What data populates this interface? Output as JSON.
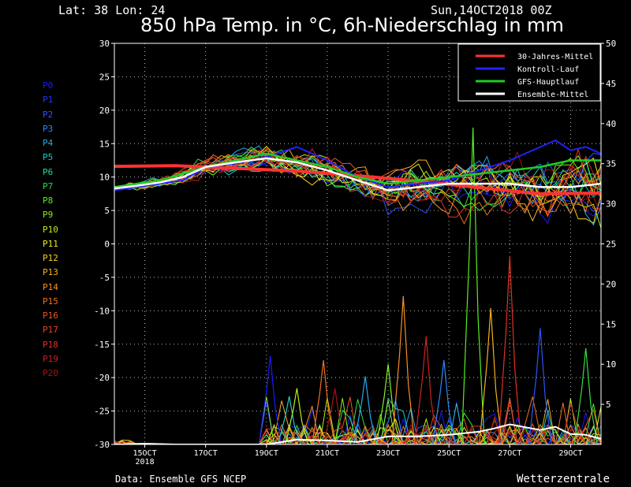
{
  "header": {
    "latlon": "Lat: 38 Lon: 24",
    "date": "Sun,14OCT2018 00Z",
    "title": "850 hPa Temp. in °C, 6h-Niederschlag in mm"
  },
  "members": [
    {
      "label": "P0",
      "color": "#1a1aff"
    },
    {
      "label": "P1",
      "color": "#2233ff"
    },
    {
      "label": "P2",
      "color": "#2a55ff"
    },
    {
      "label": "P3",
      "color": "#2a88ff"
    },
    {
      "label": "P4",
      "color": "#22aaee"
    },
    {
      "label": "P5",
      "color": "#1ec8c8"
    },
    {
      "label": "P6",
      "color": "#22dd88"
    },
    {
      "label": "P7",
      "color": "#33dd44"
    },
    {
      "label": "P8",
      "color": "#55ee22"
    },
    {
      "label": "P9",
      "color": "#88ee22"
    },
    {
      "label": "P10",
      "color": "#bbee11"
    },
    {
      "label": "P11",
      "color": "#eeee22"
    },
    {
      "label": "P12",
      "color": "#f5d020"
    },
    {
      "label": "P13",
      "color": "#f5b020"
    },
    {
      "label": "P14",
      "color": "#f59020"
    },
    {
      "label": "P15",
      "color": "#f07020"
    },
    {
      "label": "P16",
      "color": "#ee5522"
    },
    {
      "label": "P17",
      "color": "#e84422"
    },
    {
      "label": "P18",
      "color": "#dd3322"
    },
    {
      "label": "P19",
      "color": "#cc2222"
    },
    {
      "label": "P20",
      "color": "#aa1111"
    }
  ],
  "credits": {
    "left": "Data: Ensemble GFS NCEP",
    "right": "Wetterzentrale"
  },
  "chart_data": {
    "type": "line",
    "title": "850 hPa Temp. in °C, 6h-Niederschlag in mm",
    "x_ticks": [
      "15OCT",
      "17OCT",
      "19OCT",
      "21OCT",
      "23OCT",
      "25OCT",
      "27OCT",
      "29OCT"
    ],
    "x_tick_hours": [
      24,
      72,
      120,
      168,
      216,
      264,
      312,
      360
    ],
    "x_year_label": "2018",
    "x_range_hours": [
      0,
      384
    ],
    "y_left": {
      "label": "°C",
      "range": [
        -30,
        30
      ],
      "ticks": [
        30,
        25,
        20,
        15,
        10,
        5,
        0,
        -5,
        -10,
        -15,
        -20,
        -25,
        -30
      ]
    },
    "y_right": {
      "label": "mm",
      "range": [
        0,
        50
      ],
      "ticks": [
        50,
        45,
        40,
        35,
        30,
        25,
        20,
        15,
        10,
        5
      ]
    },
    "grid": true,
    "legend": {
      "placement": "top-right",
      "entries": [
        {
          "label": "30-Jahres-Mittel",
          "color": "#ff3333"
        },
        {
          "label": "Kontroll-Lauf",
          "color": "#2222ff"
        },
        {
          "label": "GFS-Hauptlauf",
          "color": "#22cc22"
        },
        {
          "label": "Ensemble-Mittel",
          "color": "#ffffff"
        }
      ]
    },
    "series": [
      {
        "name": "30-Jahres-Mittel",
        "color": "#ff3333",
        "axis": "temp",
        "width": 4,
        "x": [
          0,
          48,
          96,
          144,
          192,
          240,
          288,
          336,
          384
        ],
        "y": [
          11.6,
          11.7,
          11.3,
          10.9,
          10.2,
          9.4,
          8.4,
          7.5,
          7.6
        ]
      },
      {
        "name": "Kontroll-Lauf",
        "color": "#2222ff",
        "axis": "temp",
        "width": 2,
        "x": [
          0,
          18,
          36,
          54,
          72,
          96,
          120,
          144,
          156,
          168,
          192,
          216,
          240,
          264,
          288,
          312,
          336,
          348,
          360,
          372,
          384
        ],
        "y": [
          8,
          8.5,
          9,
          9.5,
          11.5,
          12,
          13,
          14.5,
          13.5,
          12.5,
          10,
          8.5,
          9,
          9.5,
          11,
          12.5,
          14.5,
          15.5,
          14,
          14.5,
          13.5
        ]
      },
      {
        "name": "GFS-Hauptlauf",
        "color": "#22cc22",
        "axis": "temp",
        "width": 2.5,
        "x": [
          0,
          18,
          36,
          54,
          72,
          96,
          120,
          144,
          168,
          192,
          216,
          240,
          264,
          288,
          312,
          336,
          360,
          384
        ],
        "y": [
          8.5,
          9,
          9.5,
          10.5,
          11.5,
          12.5,
          13.5,
          12.5,
          11.5,
          10,
          9,
          9.5,
          10,
          10.5,
          11,
          11.5,
          12.5,
          12.5
        ]
      },
      {
        "name": "Ensemble-Mittel",
        "color": "#ffffff",
        "axis": "temp",
        "width": 2.5,
        "x": [
          0,
          18,
          36,
          54,
          72,
          96,
          120,
          144,
          168,
          192,
          216,
          240,
          264,
          288,
          312,
          336,
          360,
          384
        ],
        "y": [
          8.3,
          8.7,
          9.2,
          10,
          11.5,
          12.2,
          12.8,
          12.2,
          11,
          9.5,
          8,
          8.5,
          9,
          9,
          9,
          8.5,
          8.5,
          9
        ]
      },
      {
        "name": "Ensemble-Mittel Niederschlag",
        "color": "#ffffff",
        "axis": "precip",
        "width": 2,
        "x": [
          0,
          24,
          48,
          72,
          96,
          120,
          144,
          168,
          192,
          216,
          240,
          264,
          288,
          300,
          312,
          336,
          348,
          360,
          372,
          384
        ],
        "y": [
          0,
          0.1,
          0,
          0,
          0,
          0,
          0.6,
          0.5,
          0.3,
          1,
          1,
          1.2,
          1.6,
          2,
          2.5,
          1.8,
          2.2,
          1.3,
          1.2,
          0.7
        ]
      }
    ],
    "member_precip_peaks": [
      {
        "x": 123,
        "y": 11
      },
      {
        "x": 138,
        "y": 6
      },
      {
        "x": 144,
        "y": 7
      },
      {
        "x": 165,
        "y": 10.5
      },
      {
        "x": 174,
        "y": 7
      },
      {
        "x": 198,
        "y": 8.5
      },
      {
        "x": 216,
        "y": 10
      },
      {
        "x": 228,
        "y": 18.5
      },
      {
        "x": 246,
        "y": 13.5
      },
      {
        "x": 260,
        "y": 10.5
      },
      {
        "x": 283,
        "y": 39.5
      },
      {
        "x": 297,
        "y": 17
      },
      {
        "x": 312,
        "y": 23.5
      },
      {
        "x": 336,
        "y": 14.5
      },
      {
        "x": 372,
        "y": 12
      }
    ]
  }
}
